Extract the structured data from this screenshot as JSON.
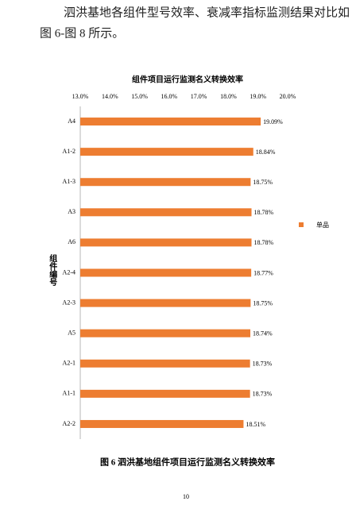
{
  "paragraph": [
    "泗洪基地各组件型号效率、衰减率指标监测结果对比如",
    "图 6-图 8 所示。"
  ],
  "chart_data": {
    "type": "bar",
    "orientation": "horizontal",
    "title": "组件项目运行监测名义转换效率",
    "y_label": "组件编号",
    "categories": [
      "A4",
      "A1-2",
      "A1-3",
      "A3",
      "A6",
      "A2-4",
      "A2-3",
      "A5",
      "A2-1",
      "A1-1",
      "A2-2"
    ],
    "series": [
      {
        "name": "单品",
        "color": "#ed7d31",
        "values": [
          19.09,
          18.84,
          18.75,
          18.78,
          18.78,
          18.77,
          18.75,
          18.74,
          18.73,
          18.73,
          18.51
        ],
        "value_labels": [
          "19.09%",
          "18.84%",
          "18.75%",
          "18.78%",
          "18.78%",
          "18.77%",
          "18.75%",
          "18.74%",
          "18.73%",
          "18.73%",
          "18.51%"
        ]
      }
    ],
    "xlim": [
      13,
      20
    ],
    "xticks": [
      {
        "value": 13,
        "label": "13.0%"
      },
      {
        "value": 14,
        "label": "14.0%"
      },
      {
        "value": 15,
        "label": "15.0%"
      },
      {
        "value": 16,
        "label": "16.0%"
      },
      {
        "value": 17,
        "label": "17.0%"
      },
      {
        "value": 18,
        "label": "18.0%"
      },
      {
        "value": 19,
        "label": "19.0%"
      },
      {
        "value": 20,
        "label": "20.0%"
      }
    ],
    "legend": "right"
  },
  "caption": "图 6    泗洪基地组件项目运行监测名义转换效率",
  "page_number": "10"
}
